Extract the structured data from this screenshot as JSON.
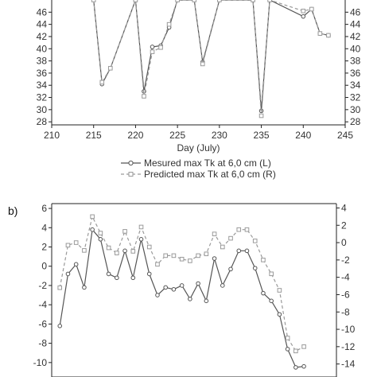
{
  "colors": {
    "measured": "#555555",
    "predicted": "#9a9a9a",
    "axis": "#222222"
  },
  "chart_data": [
    {
      "panel": "a",
      "type": "line",
      "xlabel": "Day (July)",
      "xlim": [
        210,
        245
      ],
      "xticks": [
        210,
        215,
        220,
        225,
        230,
        235,
        240,
        245
      ],
      "ylim_left": [
        27.5,
        48
      ],
      "ylim_right": [
        27.5,
        48
      ],
      "yticks_left": [
        28,
        30,
        32,
        34,
        36,
        38,
        40,
        42,
        44,
        46
      ],
      "yticks_right": [
        28,
        30,
        32,
        34,
        36,
        38,
        40,
        42,
        44,
        46
      ],
      "grid": false,
      "legend_position": "bottom-center",
      "series": [
        {
          "name": "Mesured max Tk  at 6,0 cm (L)",
          "axis": "left",
          "style": "solid-circle",
          "x": [
            215,
            216,
            217,
            220,
            221,
            222,
            223,
            224,
            225,
            227,
            228,
            230,
            234,
            235,
            236,
            240,
            241,
            242,
            243
          ],
          "y": [
            48,
            34.2,
            36.8,
            48,
            33,
            40.3,
            40.5,
            43.5,
            48,
            48,
            37.8,
            48,
            48,
            29.8,
            48,
            45.3,
            46.5,
            42.5,
            42.2
          ]
        },
        {
          "name": "Predicted max Tk  at 6,0 cm (R)",
          "axis": "right",
          "style": "dashed-square",
          "x": [
            215,
            216,
            217,
            220,
            221,
            222,
            223,
            224,
            225,
            227,
            228,
            230,
            234,
            235,
            236,
            240,
            241,
            242,
            243
          ],
          "y": [
            48,
            34.5,
            36.8,
            48,
            32.2,
            39.5,
            40.2,
            44,
            48,
            48,
            37.5,
            48,
            48,
            29,
            48,
            46.2,
            46.5,
            42.5,
            42.2
          ]
        }
      ]
    },
    {
      "panel": "b",
      "type": "line",
      "panel_label": "b)",
      "xlim": [
        210,
        245
      ],
      "ylim_left": [
        -11.5,
        6.5
      ],
      "ylim_right": [
        -15.5,
        4.5
      ],
      "yticks_left": [
        6,
        4,
        2,
        0,
        -2,
        -4,
        -6,
        -8,
        -10
      ],
      "yticks_right": [
        4,
        2,
        0,
        -2,
        -4,
        -6,
        -8,
        -10,
        -12,
        -14
      ],
      "grid": false,
      "series": [
        {
          "name": "Mesured max Tk  at 6,0 cm (L)",
          "axis": "left",
          "style": "solid-circle",
          "x": [
            211,
            212,
            213,
            214,
            215,
            216,
            217,
            218,
            219,
            220,
            221,
            222,
            223,
            224,
            225,
            226,
            227,
            228,
            229,
            230,
            231,
            232,
            233,
            234,
            235,
            236,
            237,
            238,
            239,
            240,
            241
          ],
          "y": [
            -6.2,
            -0.8,
            0.2,
            -2.2,
            3.8,
            2.8,
            -0.8,
            -1.2,
            1.6,
            -1.2,
            2.8,
            -0.8,
            -3.0,
            -2.2,
            -2.4,
            -2.0,
            -3.4,
            -1.8,
            -3.6,
            0.8,
            -2.0,
            -0.3,
            1.6,
            1.6,
            -0.2,
            -2.8,
            -3.6,
            -5.0,
            -8.6,
            -10.5,
            -10.4
          ]
        },
        {
          "name": "Predicted max Tk  at 6,0 cm (R)",
          "axis": "right",
          "style": "dashed-square",
          "x": [
            211,
            212,
            213,
            214,
            215,
            216,
            217,
            218,
            219,
            220,
            221,
            222,
            223,
            224,
            225,
            226,
            227,
            228,
            229,
            230,
            231,
            232,
            233,
            234,
            235,
            236,
            237,
            238,
            239,
            240,
            241
          ],
          "y": [
            -5.2,
            -0.3,
            0.0,
            -0.9,
            3.0,
            1.1,
            -0.6,
            -1.2,
            1.3,
            -1.0,
            1.8,
            -0.5,
            -2.5,
            -1.5,
            -1.5,
            -1.9,
            -2.1,
            -1.5,
            -1.3,
            1.0,
            -0.5,
            0.5,
            1.5,
            1.5,
            0.2,
            -2.0,
            -3.6,
            -5.5,
            -11.0,
            -12.5,
            -12.0
          ]
        }
      ]
    }
  ]
}
